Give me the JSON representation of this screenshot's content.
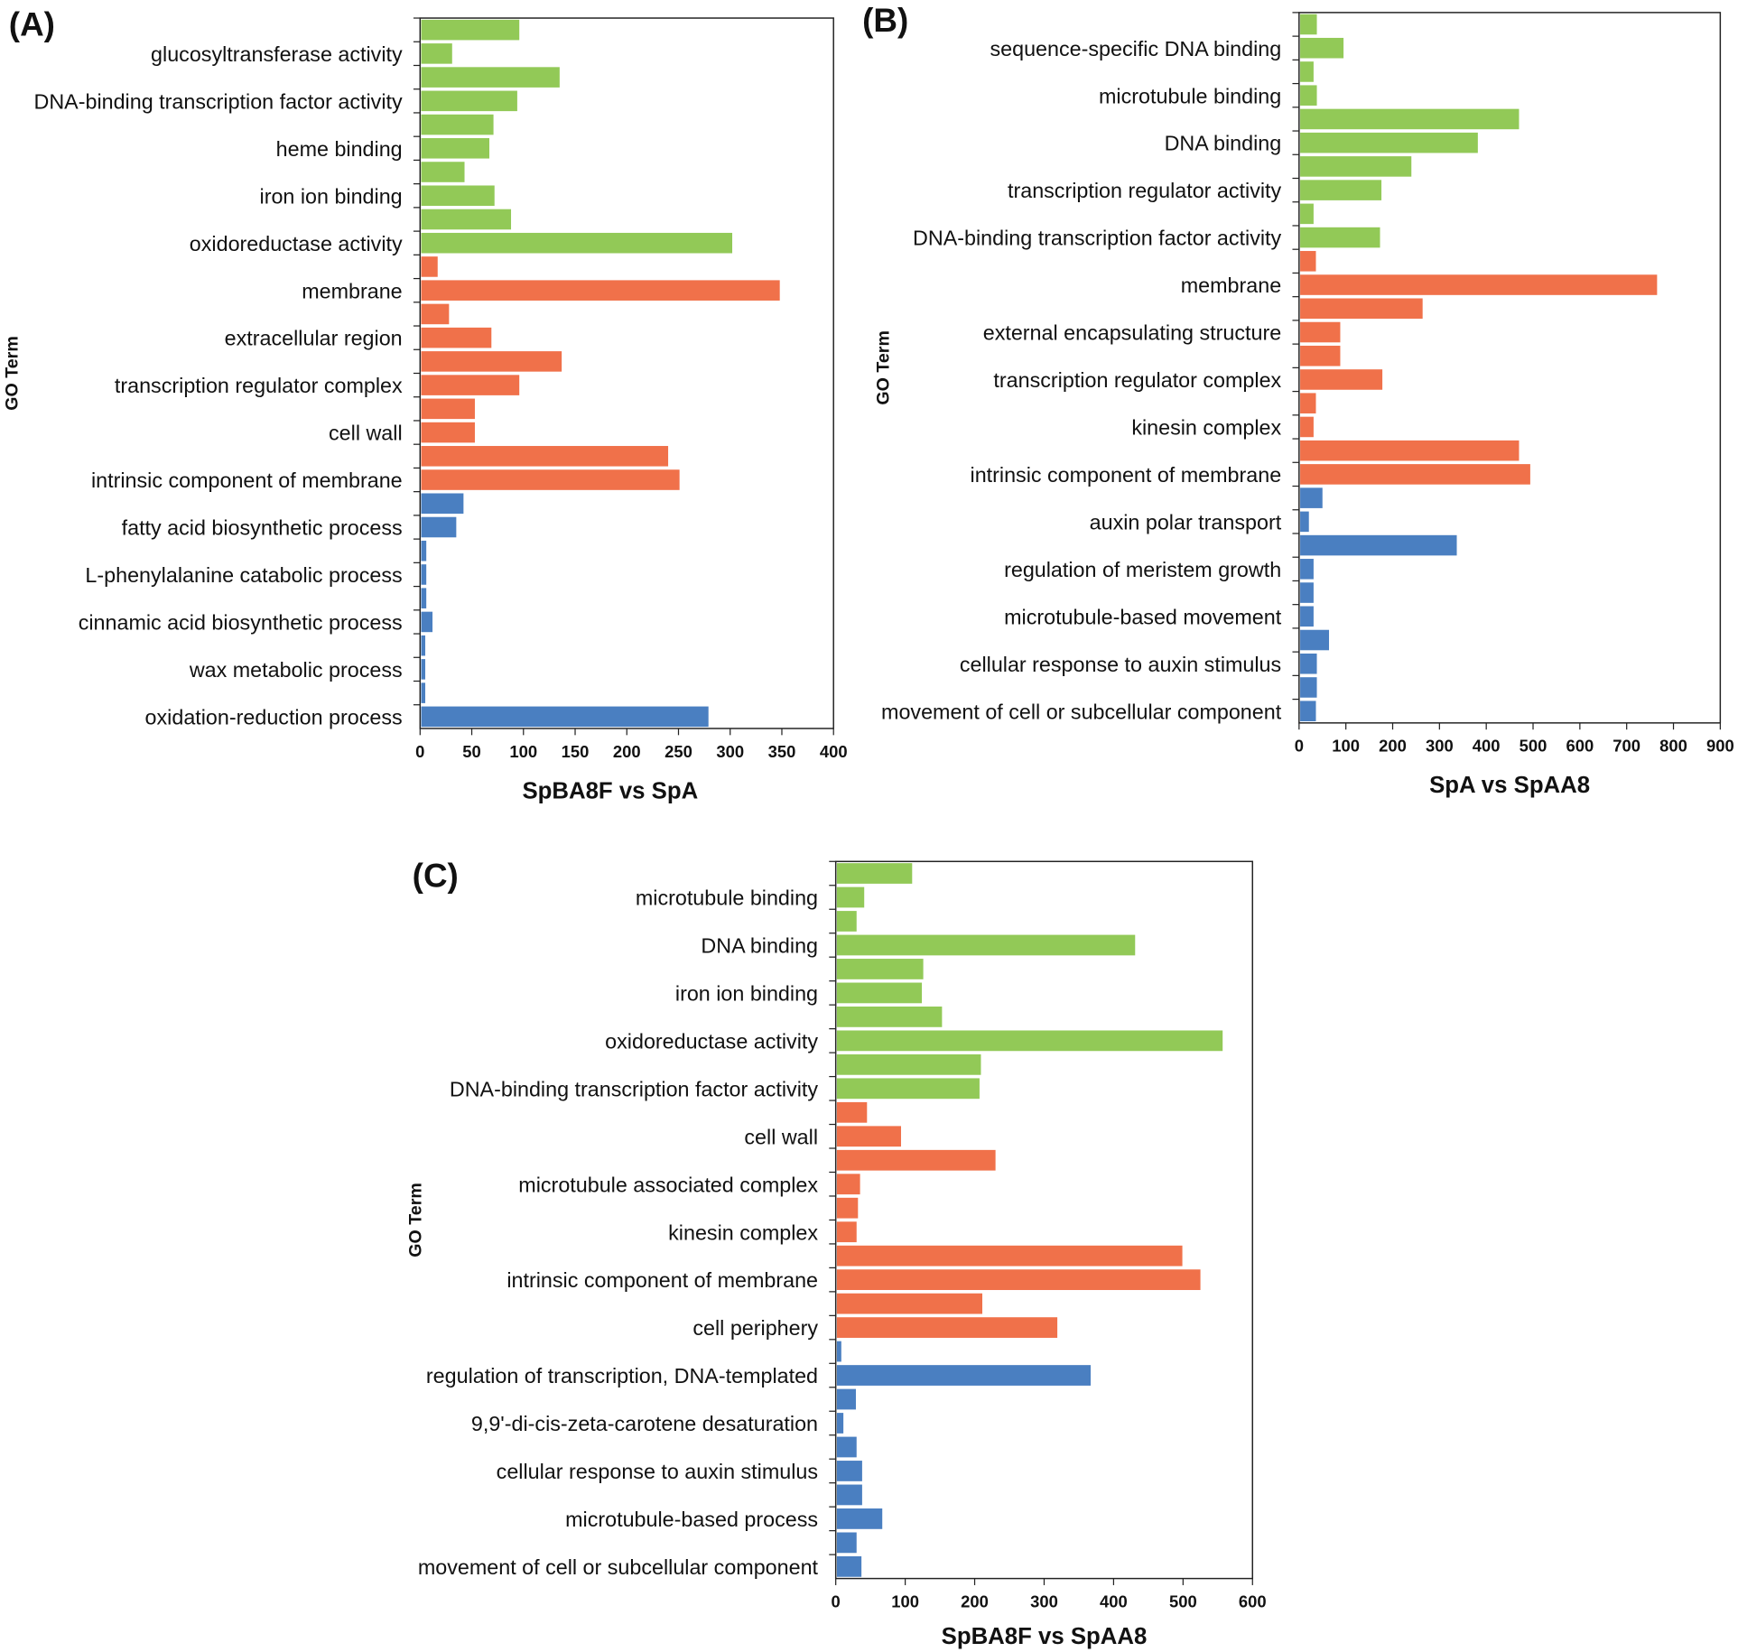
{
  "colors": {
    "molecular_function": "#92c957",
    "cellular_component": "#f0714a",
    "biological_process": "#4a7fc1"
  },
  "chart_data": [
    {
      "type": "bar",
      "orientation": "horizontal",
      "panel": "(A)",
      "title": "SpBA8F vs SpA",
      "xlabel": "SpBA8F vs SpA",
      "ylabel": "GO Term",
      "xlim": [
        0,
        400
      ],
      "xticks": [
        0,
        50,
        100,
        150,
        200,
        250,
        300,
        350,
        400
      ],
      "categories": [
        "",
        "glucosyltransferase activity",
        "",
        "DNA-binding transcription factor activity",
        "",
        "heme binding",
        "",
        "iron ion binding",
        "",
        "oxidoreductase activity",
        "",
        "membrane",
        "",
        "extracellular region",
        "",
        "transcription regulator complex",
        "",
        "cell wall",
        "",
        "intrinsic component of membrane",
        "",
        "fatty acid biosynthetic process",
        "",
        "L-phenylalanine catabolic process",
        "",
        "cinnamic acid biosynthetic process",
        "",
        "wax metabolic process",
        "",
        "oxidation-reduction process"
      ],
      "values": [
        96,
        31,
        135,
        94,
        71,
        67,
        43,
        72,
        88,
        302,
        17,
        348,
        28,
        69,
        137,
        96,
        53,
        53,
        240,
        251,
        42,
        35,
        6,
        6,
        6,
        12,
        5,
        5,
        5,
        279
      ]
    },
    {
      "type": "bar",
      "orientation": "horizontal",
      "panel": "(B)",
      "title": "SpA vs SpAA8",
      "xlabel": "SpA vs SpAA8",
      "ylabel": "GO Term",
      "xlim": [
        0,
        900
      ],
      "xticks": [
        0,
        100,
        200,
        300,
        400,
        500,
        600,
        700,
        800,
        900
      ],
      "categories": [
        "",
        "sequence-specific DNA binding",
        "",
        "microtubule binding",
        "",
        "DNA binding",
        "",
        "transcription regulator activity",
        "",
        "DNA-binding transcription factor activity",
        "",
        "membrane",
        "",
        "external encapsulating structure",
        "",
        "transcription regulator complex",
        "",
        "kinesin complex",
        "",
        "intrinsic component of membrane",
        "",
        "auxin polar transport",
        "",
        "regulation of meristem growth",
        "",
        "microtubule-based movement",
        "",
        "cellular response to auxin stimulus",
        "",
        "movement of cell or subcellular component"
      ],
      "values": [
        38,
        95,
        31,
        38,
        470,
        382,
        240,
        176,
        31,
        173,
        36,
        765,
        264,
        88,
        88,
        178,
        36,
        31,
        470,
        494,
        50,
        21,
        337,
        31,
        31,
        31,
        64,
        38,
        38,
        36
      ]
    },
    {
      "type": "bar",
      "orientation": "horizontal",
      "panel": "(C)",
      "title": "SpBA8F vs SpAA8",
      "xlabel": "SpBA8F vs SpAA8",
      "ylabel": "GO Term",
      "xlim": [
        0,
        600
      ],
      "xticks": [
        0,
        100,
        200,
        300,
        400,
        500,
        600
      ],
      "categories": [
        "",
        "microtubule binding",
        "",
        "DNA binding",
        "",
        "iron ion binding",
        "",
        "oxidoreductase activity",
        "",
        "DNA-binding transcription factor activity",
        "",
        "cell wall",
        "",
        "microtubule associated complex",
        "",
        "kinesin complex",
        "",
        "intrinsic component of membrane",
        "",
        "cell periphery",
        "",
        "regulation of transcription, DNA-templated",
        "",
        "9,9'-di-cis-zeta-carotene desaturation",
        "",
        "cellular response to auxin stimulus",
        "",
        "microtubule-based process",
        "",
        "movement of cell or subcellular component"
      ],
      "values": [
        110,
        41,
        30,
        431,
        126,
        124,
        153,
        557,
        209,
        207,
        45,
        94,
        230,
        35,
        32,
        30,
        499,
        525,
        211,
        319,
        8,
        367,
        29,
        11,
        30,
        38,
        38,
        67,
        30,
        37
      ]
    }
  ]
}
